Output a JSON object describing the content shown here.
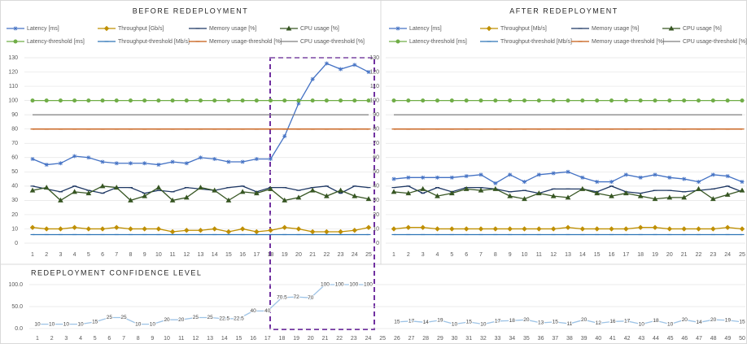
{
  "chart_data": [
    {
      "type": "line",
      "title": "BEFORE REDEPLOYMENT",
      "categories": [
        1,
        2,
        3,
        4,
        5,
        6,
        7,
        8,
        9,
        10,
        11,
        12,
        13,
        14,
        15,
        16,
        17,
        18,
        19,
        20,
        21,
        22,
        23,
        24,
        25
      ],
      "ylim": [
        0,
        130
      ],
      "yticks": [
        0,
        10,
        20,
        30,
        40,
        50,
        60,
        70,
        80,
        90,
        100,
        110,
        120,
        130
      ],
      "grid": true,
      "series": [
        {
          "name": "Latency [ms]",
          "color": "#4472c4",
          "marker": "star",
          "values": [
            59,
            55,
            56,
            61,
            60,
            57,
            56,
            56,
            56,
            55,
            57,
            56,
            60,
            59,
            57,
            57,
            59,
            59,
            75,
            98,
            115,
            126,
            122,
            125,
            120
          ]
        },
        {
          "name": "Throughput [Gb/s]",
          "color": "#bf8f00",
          "marker": "diamond",
          "values": [
            11,
            10,
            10,
            11,
            10,
            10,
            11,
            10,
            10,
            10,
            8,
            9,
            9,
            10,
            8,
            10,
            8,
            9,
            11,
            10,
            8,
            8,
            8,
            9,
            11
          ]
        },
        {
          "name": "Memory usage [%]",
          "color": "#1f3864",
          "marker": "dash",
          "values": [
            40,
            38,
            36,
            40,
            37,
            35,
            39,
            39,
            35,
            37,
            36,
            39,
            38,
            37,
            39,
            40,
            36,
            39,
            39,
            37,
            39,
            40,
            35,
            40,
            39
          ]
        },
        {
          "name": "CPU usage [%]",
          "color": "#375623",
          "marker": "triangle",
          "values": [
            37,
            39,
            30,
            36,
            35,
            40,
            39,
            30,
            33,
            39,
            30,
            32,
            39,
            37,
            30,
            36,
            35,
            38,
            30,
            32,
            37,
            33,
            37,
            33,
            31
          ]
        },
        {
          "name": "Latency-threshold [ms]",
          "color": "#70ad47",
          "marker": "circle",
          "values": [
            100,
            100,
            100,
            100,
            100,
            100,
            100,
            100,
            100,
            100,
            100,
            100,
            100,
            100,
            100,
            100,
            100,
            100,
            100,
            100,
            100,
            100,
            100,
            100,
            100
          ]
        },
        {
          "name": "Throughput-threshold [Mb/s]",
          "color": "#2e75b6",
          "marker": "dash",
          "values": [
            6,
            6,
            6,
            6,
            6,
            6,
            6,
            6,
            6,
            6,
            6,
            6,
            6,
            6,
            6,
            6,
            6,
            6,
            6,
            6,
            6,
            6,
            6,
            6,
            6
          ]
        },
        {
          "name": "Memory usage-threshold [%]",
          "color": "#c55a11",
          "marker": "dash",
          "values": [
            80,
            80,
            80,
            80,
            80,
            80,
            80,
            80,
            80,
            80,
            80,
            80,
            80,
            80,
            80,
            80,
            80,
            80,
            80,
            80,
            80,
            80,
            80,
            80,
            80
          ]
        },
        {
          "name": "CPU usage-threshold [%]",
          "color": "#7f7f7f",
          "marker": "none",
          "values": [
            90,
            90,
            90,
            90,
            90,
            90,
            90,
            90,
            90,
            90,
            90,
            90,
            90,
            90,
            90,
            90,
            90,
            90,
            90,
            90,
            90,
            90,
            90,
            90,
            90
          ]
        }
      ]
    },
    {
      "type": "line",
      "title": "AFTER REDEPLOYMENT",
      "categories": [
        1,
        2,
        3,
        4,
        5,
        6,
        7,
        8,
        9,
        10,
        11,
        12,
        13,
        14,
        15,
        16,
        17,
        18,
        19,
        20,
        21,
        22,
        23,
        24,
        25
      ],
      "ylim": [
        0,
        130
      ],
      "yticks": [
        0,
        10,
        20,
        30,
        40,
        50,
        60,
        70,
        80,
        90,
        100,
        110,
        120,
        130
      ],
      "grid": true,
      "series": [
        {
          "name": "Latency [ms]",
          "color": "#4472c4",
          "marker": "star",
          "values": [
            45,
            46,
            46,
            46,
            46,
            47,
            48,
            42,
            48,
            43,
            48,
            49,
            50,
            46,
            43,
            43,
            48,
            46,
            48,
            46,
            45,
            43,
            48,
            47,
            43
          ]
        },
        {
          "name": "Throughput [Mb/s]",
          "color": "#bf8f00",
          "marker": "diamond",
          "values": [
            10,
            11,
            11,
            10,
            10,
            10,
            10,
            10,
            10,
            10,
            10,
            10,
            11,
            10,
            10,
            10,
            10,
            11,
            11,
            10,
            10,
            10,
            10,
            11,
            10
          ]
        },
        {
          "name": "Memory usage [%]",
          "color": "#1f3864",
          "marker": "dash",
          "values": [
            39,
            40,
            35,
            39,
            36,
            39,
            39,
            38,
            36,
            37,
            35,
            38,
            38,
            38,
            36,
            40,
            36,
            35,
            37,
            37,
            36,
            37,
            38,
            40,
            36
          ]
        },
        {
          "name": "CPU usage [%]",
          "color": "#375623",
          "marker": "triangle",
          "values": [
            36,
            35,
            38,
            33,
            35,
            38,
            37,
            38,
            33,
            31,
            35,
            33,
            32,
            38,
            35,
            33,
            35,
            33,
            31,
            32,
            32,
            38,
            31,
            34,
            37
          ]
        },
        {
          "name": "Latency-threshold [ms]",
          "color": "#70ad47",
          "marker": "circle",
          "values": [
            100,
            100,
            100,
            100,
            100,
            100,
            100,
            100,
            100,
            100,
            100,
            100,
            100,
            100,
            100,
            100,
            100,
            100,
            100,
            100,
            100,
            100,
            100,
            100,
            100
          ]
        },
        {
          "name": "Throughput-threshold [Mb/s]",
          "color": "#2e75b6",
          "marker": "dash",
          "values": [
            6,
            6,
            6,
            6,
            6,
            6,
            6,
            6,
            6,
            6,
            6,
            6,
            6,
            6,
            6,
            6,
            6,
            6,
            6,
            6,
            6,
            6,
            6,
            6,
            6
          ]
        },
        {
          "name": "Memory usage-threshold [%]",
          "color": "#c55a11",
          "marker": "dash",
          "values": [
            80,
            80,
            80,
            80,
            80,
            80,
            80,
            80,
            80,
            80,
            80,
            80,
            80,
            80,
            80,
            80,
            80,
            80,
            80,
            80,
            80,
            80,
            80,
            80,
            80
          ]
        },
        {
          "name": "CPU usage-threshold [%]",
          "color": "#7f7f7f",
          "marker": "none",
          "values": [
            90,
            90,
            90,
            90,
            90,
            90,
            90,
            90,
            90,
            90,
            90,
            90,
            90,
            90,
            90,
            90,
            90,
            90,
            90,
            90,
            90,
            90,
            90,
            90,
            90
          ]
        }
      ]
    },
    {
      "type": "line",
      "title": "REDEPLOYMENT CONFIDENCE LEVEL",
      "categories": [
        1,
        2,
        3,
        4,
        5,
        6,
        7,
        8,
        9,
        10,
        11,
        12,
        13,
        14,
        15,
        16,
        17,
        18,
        19,
        20,
        21,
        22,
        23,
        24,
        25,
        26,
        27,
        28,
        29,
        30,
        31,
        32,
        33,
        34,
        35,
        36,
        37,
        38,
        39,
        40,
        41,
        42,
        43,
        44,
        45,
        46,
        47,
        48,
        49,
        50
      ],
      "ylim": [
        0,
        100
      ],
      "yticks": [
        {
          "value": 0,
          "label": "0.0"
        },
        {
          "value": 50,
          "label": "50.0"
        },
        {
          "value": 100,
          "label": "100.0"
        }
      ],
      "grid": true,
      "data_labels": true,
      "series": [
        {
          "color": "#9dc3e6",
          "marker": "circle",
          "values": [
            10,
            10,
            10,
            10,
            15,
            25,
            25,
            10,
            10,
            20,
            20,
            25,
            25,
            22.5,
            22.5,
            40,
            40,
            70.5,
            72,
            70,
            100,
            100,
            100,
            100,
            null,
            15,
            17,
            14,
            19,
            10,
            15,
            10,
            17,
            18,
            20,
            13,
            15,
            11,
            20,
            12,
            16,
            17,
            10,
            18,
            10,
            20,
            14,
            20,
            19,
            15
          ]
        }
      ]
    }
  ]
}
